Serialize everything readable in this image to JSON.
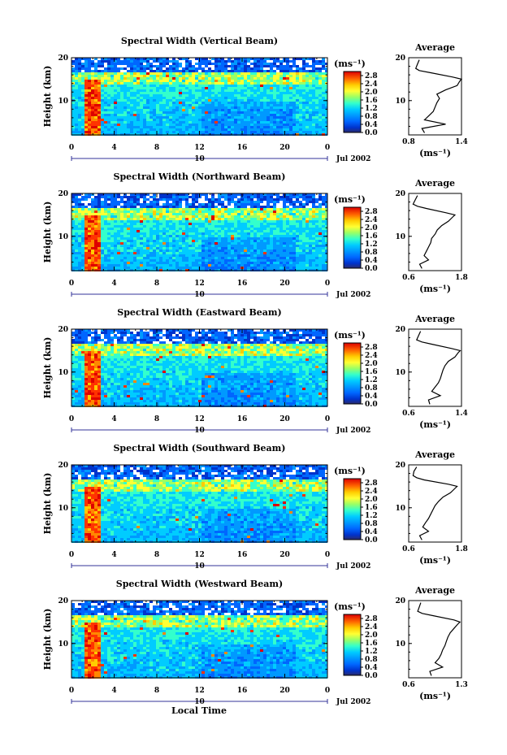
{
  "figure": {
    "xlabel_bottom": "Local Time",
    "date_label": "Jul 2002",
    "day_label": "10",
    "ylabel": "Height (km)",
    "colorbar_unit": "(ms⁻¹)",
    "avg_title": "Average",
    "avg_unit": "(ms⁻¹)"
  },
  "chart_data": [
    {
      "type": "heatmap",
      "title": "Spectral Width (Vertical Beam)",
      "x_ticks": [
        "0",
        "4",
        "8",
        "12",
        "16",
        "20",
        "0"
      ],
      "xlim": [
        0,
        24
      ],
      "y_ticks": [
        "20",
        "10"
      ],
      "ylim": [
        2,
        20
      ],
      "colorbar_ticks": [
        "2.8",
        "2.4",
        "2.0",
        "1.6",
        "1.2",
        "0.8",
        "0.4",
        "0.0"
      ],
      "colorbar_range": [
        0,
        3.0
      ],
      "average_profile": {
        "x_ticks": [
          "0.8",
          "1.4"
        ],
        "xlim": [
          0.8,
          1.4
        ],
        "y_ticks": [
          "20",
          "10"
        ],
        "ylim": [
          2,
          20
        ],
        "height_km": [
          2.5,
          3.5,
          4.5,
          5.5,
          6.5,
          7.5,
          8.5,
          9.5,
          10.5,
          11.5,
          12.5,
          13.5,
          14.5,
          15.0,
          15.5,
          16.5,
          17.0,
          17.5,
          18.5,
          19.5
        ],
        "width_ms": [
          0.98,
          0.95,
          1.22,
          0.98,
          1.03,
          1.08,
          1.1,
          1.12,
          1.15,
          1.12,
          1.22,
          1.35,
          1.38,
          1.4,
          1.3,
          1.05,
          0.92,
          0.88,
          0.9,
          0.92
        ]
      }
    },
    {
      "type": "heatmap",
      "title": "Spectral Width (Northward Beam)",
      "x_ticks": [
        "0",
        "4",
        "8",
        "12",
        "16",
        "20",
        "0"
      ],
      "xlim": [
        0,
        24
      ],
      "y_ticks": [
        "20",
        "10"
      ],
      "ylim": [
        2,
        20
      ],
      "colorbar_ticks": [
        "2.8",
        "2.4",
        "2.0",
        "1.6",
        "1.2",
        "0.8",
        "0.4",
        "0.0"
      ],
      "colorbar_range": [
        0,
        3.0
      ],
      "average_profile": {
        "x_ticks": [
          "0.6",
          "1.8"
        ],
        "xlim": [
          0.6,
          1.8
        ],
        "y_ticks": [
          "20",
          "10"
        ],
        "ylim": [
          2,
          20
        ],
        "height_km": [
          2.5,
          3.5,
          4.5,
          5.5,
          6.5,
          7.5,
          8.5,
          9.5,
          10.5,
          11.5,
          12.5,
          13.5,
          14.5,
          15.0,
          15.5,
          16.5,
          17.0,
          17.5,
          18.5,
          19.5
        ],
        "width_ms": [
          0.9,
          0.85,
          1.05,
          0.95,
          1.0,
          1.05,
          1.1,
          1.12,
          1.2,
          1.25,
          1.35,
          1.5,
          1.6,
          1.65,
          1.45,
          1.0,
          0.8,
          0.7,
          0.75,
          0.8
        ]
      }
    },
    {
      "type": "heatmap",
      "title": "Spectral Width (Eastward Beam)",
      "x_ticks": [
        "0",
        "4",
        "8",
        "12",
        "16",
        "20",
        "0"
      ],
      "xlim": [
        0,
        24
      ],
      "y_ticks": [
        "20",
        "10"
      ],
      "ylim": [
        2,
        20
      ],
      "colorbar_ticks": [
        "2.8",
        "2.4",
        "2.0",
        "1.6",
        "1.2",
        "0.8",
        "0.4",
        "0.0"
      ],
      "colorbar_range": [
        0,
        3.0
      ],
      "average_profile": {
        "x_ticks": [
          "0.6",
          "1.4"
        ],
        "xlim": [
          0.6,
          1.4
        ],
        "y_ticks": [
          "20",
          "10"
        ],
        "ylim": [
          2,
          20
        ],
        "height_km": [
          2.5,
          3.5,
          4.5,
          5.5,
          6.5,
          7.5,
          8.5,
          9.5,
          10.5,
          11.5,
          12.5,
          13.5,
          14.5,
          15.0,
          15.5,
          16.5,
          17.0,
          17.5,
          18.5,
          19.5
        ],
        "width_ms": [
          0.92,
          0.9,
          1.08,
          0.95,
          1.0,
          1.05,
          1.08,
          1.1,
          1.12,
          1.15,
          1.2,
          1.3,
          1.35,
          1.38,
          1.25,
          0.95,
          0.8,
          0.72,
          0.75,
          0.78
        ]
      }
    },
    {
      "type": "heatmap",
      "title": "Spectral Width (Southward Beam)",
      "x_ticks": [
        "0",
        "4",
        "8",
        "12",
        "16",
        "20",
        "0"
      ],
      "xlim": [
        0,
        24
      ],
      "y_ticks": [
        "20",
        "10"
      ],
      "ylim": [
        2,
        20
      ],
      "colorbar_ticks": [
        "2.8",
        "2.4",
        "2.0",
        "1.6",
        "1.2",
        "0.8",
        "0.4",
        "0.0"
      ],
      "colorbar_range": [
        0,
        3.0
      ],
      "average_profile": {
        "x_ticks": [
          "0.6",
          "1.8"
        ],
        "xlim": [
          0.6,
          1.8
        ],
        "y_ticks": [
          "20",
          "10"
        ],
        "ylim": [
          2,
          20
        ],
        "height_km": [
          2.5,
          3.5,
          4.5,
          5.5,
          6.5,
          7.5,
          8.5,
          9.5,
          10.5,
          11.5,
          12.5,
          13.5,
          14.5,
          15.0,
          15.5,
          16.5,
          17.0,
          17.5,
          18.5,
          19.5
        ],
        "width_ms": [
          0.9,
          0.85,
          1.05,
          0.92,
          0.98,
          1.05,
          1.1,
          1.15,
          1.2,
          1.28,
          1.38,
          1.55,
          1.65,
          1.7,
          1.5,
          0.95,
          0.78,
          0.7,
          0.72,
          0.78
        ]
      }
    },
    {
      "type": "heatmap",
      "title": "Spectral Width (Westward Beam)",
      "x_ticks": [
        "0",
        "4",
        "8",
        "12",
        "16",
        "20",
        "0"
      ],
      "xlim": [
        0,
        24
      ],
      "y_ticks": [
        "20",
        "10"
      ],
      "ylim": [
        2,
        20
      ],
      "colorbar_ticks": [
        "2.8",
        "2.4",
        "2.0",
        "1.6",
        "1.2",
        "0.8",
        "0.4",
        "0.0"
      ],
      "colorbar_range": [
        0,
        3.0
      ],
      "average_profile": {
        "x_ticks": [
          "0.6",
          "1.3"
        ],
        "xlim": [
          0.6,
          1.3
        ],
        "y_ticks": [
          "20",
          "10"
        ],
        "ylim": [
          2,
          20
        ],
        "height_km": [
          2.5,
          3.5,
          4.5,
          5.5,
          6.5,
          7.5,
          8.5,
          9.5,
          10.5,
          11.5,
          12.5,
          13.5,
          14.5,
          15.0,
          15.5,
          16.5,
          17.0,
          17.5,
          18.5,
          19.5
        ],
        "width_ms": [
          0.9,
          0.88,
          1.05,
          0.95,
          1.0,
          1.03,
          1.05,
          1.08,
          1.1,
          1.12,
          1.15,
          1.2,
          1.25,
          1.28,
          1.2,
          0.92,
          0.78,
          0.72,
          0.74,
          0.76
        ]
      }
    }
  ],
  "colors": {
    "colormap": [
      "#2b2b6b",
      "#0033cc",
      "#0066ff",
      "#0099ff",
      "#00ccff",
      "#33ffcc",
      "#99ff66",
      "#ffff33",
      "#ffcc00",
      "#ff8800",
      "#ff3300",
      "#dd0000"
    ],
    "axis": "#000000",
    "day_bar": "#333399"
  }
}
